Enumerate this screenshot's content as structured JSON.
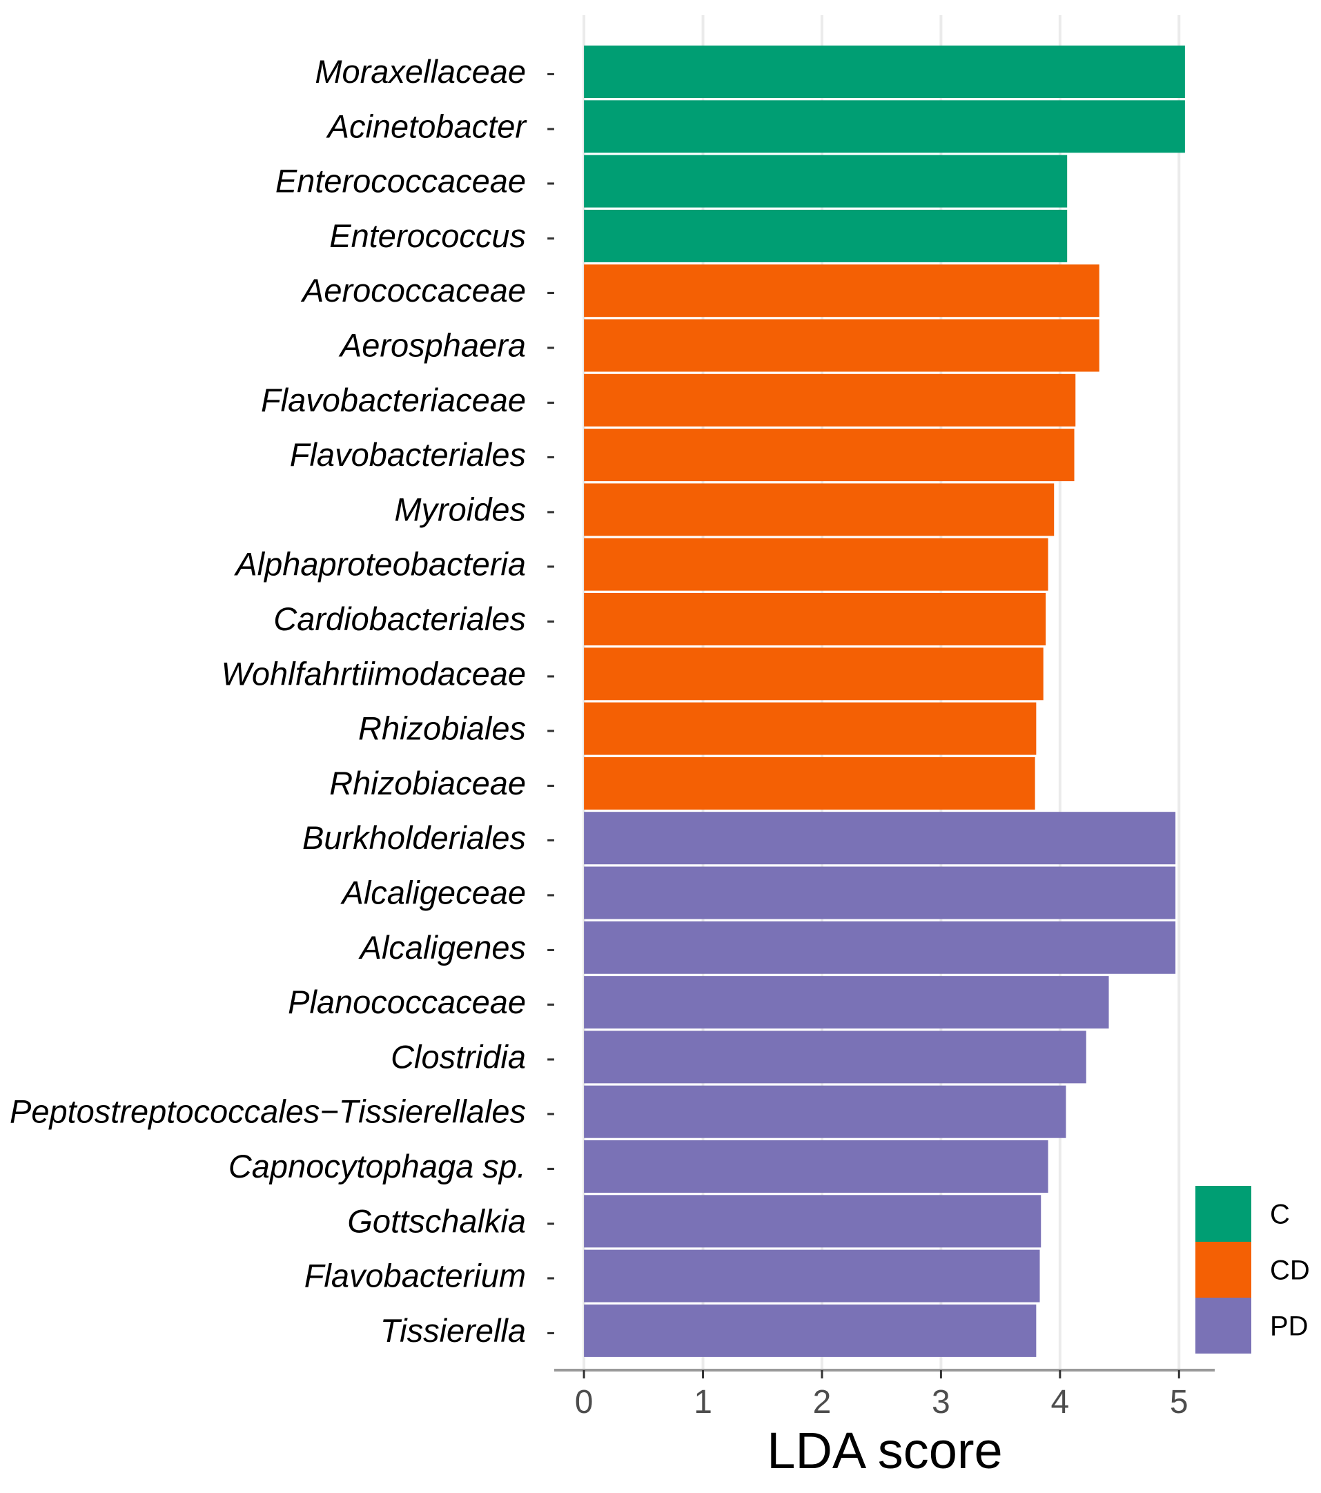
{
  "chart_data": {
    "type": "bar",
    "orientation": "horizontal",
    "title": "",
    "xlabel": "LDA score",
    "ylabel": "",
    "xlim": [
      -0.25,
      5.3
    ],
    "x_ticks": [
      0,
      1,
      2,
      3,
      4,
      5
    ],
    "grid": true,
    "legend": {
      "position": "bottom-right",
      "entries": [
        {
          "label": "C",
          "color": "#009E73"
        },
        {
          "label": "CD",
          "color": "#F46004"
        },
        {
          "label": "PD",
          "color": "#7A72B6"
        }
      ]
    },
    "bars": [
      {
        "category": "Moraxellaceae",
        "value": 5.05,
        "group": "C"
      },
      {
        "category": "Acinetobacter",
        "value": 5.05,
        "group": "C"
      },
      {
        "category": "Enterococcaceae",
        "value": 4.06,
        "group": "C"
      },
      {
        "category": "Enterococcus",
        "value": 4.06,
        "group": "C"
      },
      {
        "category": "Aerococcaceae",
        "value": 4.33,
        "group": "CD"
      },
      {
        "category": "Aerosphaera",
        "value": 4.33,
        "group": "CD"
      },
      {
        "category": "Flavobacteriaceae",
        "value": 4.13,
        "group": "CD"
      },
      {
        "category": "Flavobacteriales",
        "value": 4.12,
        "group": "CD"
      },
      {
        "category": "Myroides",
        "value": 3.95,
        "group": "CD"
      },
      {
        "category": "Alphaproteobacteria",
        "value": 3.9,
        "group": "CD"
      },
      {
        "category": "Cardiobacteriales",
        "value": 3.88,
        "group": "CD"
      },
      {
        "category": "Wohlfahrtiimodaceae",
        "value": 3.86,
        "group": "CD"
      },
      {
        "category": "Rhizobiales",
        "value": 3.8,
        "group": "CD"
      },
      {
        "category": "Rhizobiaceae",
        "value": 3.79,
        "group": "CD"
      },
      {
        "category": "Burkholderiales",
        "value": 4.97,
        "group": "PD"
      },
      {
        "category": "Alcaligeceae",
        "value": 4.97,
        "group": "PD"
      },
      {
        "category": "Alcaligenes",
        "value": 4.97,
        "group": "PD"
      },
      {
        "category": "Planococcaceae",
        "value": 4.41,
        "group": "PD"
      },
      {
        "category": "Clostridia",
        "value": 4.22,
        "group": "PD"
      },
      {
        "category": "Peptostreptococcales−Tissierellales",
        "value": 4.05,
        "group": "PD"
      },
      {
        "category": "Capnocytophaga sp.",
        "value": 3.9,
        "group": "PD"
      },
      {
        "category": "Gottschalkia",
        "value": 3.84,
        "group": "PD"
      },
      {
        "category": "Flavobacterium",
        "value": 3.83,
        "group": "PD"
      },
      {
        "category": "Tissierella",
        "value": 3.8,
        "group": "PD"
      }
    ]
  }
}
